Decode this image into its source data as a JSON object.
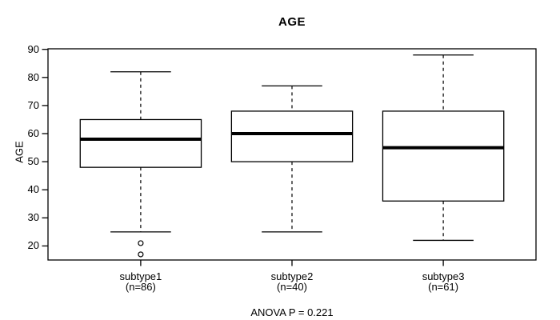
{
  "chart_data": {
    "type": "boxplot",
    "title": "AGE",
    "ylabel": "AGE",
    "xlabel": "",
    "annotation": "ANOVA P = 0.221",
    "yticks": [
      20,
      30,
      40,
      50,
      60,
      70,
      80,
      90
    ],
    "ylim": [
      15.0,
      90.2
    ],
    "grid": false,
    "legend": null,
    "orientation": "vertical",
    "groups": [
      {
        "label": "subtype1",
        "sublabel": "(n=86)",
        "n": 86,
        "whisker_low": 25,
        "q1": 48,
        "median": 58,
        "q3": 65,
        "whisker_high": 82,
        "outliers": [
          21,
          17
        ]
      },
      {
        "label": "subtype2",
        "sublabel": "(n=40)",
        "n": 40,
        "whisker_low": 25,
        "q1": 50,
        "median": 60,
        "q3": 68,
        "whisker_high": 77,
        "outliers": []
      },
      {
        "label": "subtype3",
        "sublabel": "(n=61)",
        "n": 61,
        "whisker_low": 22,
        "q1": 36,
        "median": 55,
        "q3": 68,
        "whisker_high": 88,
        "outliers": []
      }
    ],
    "colors": {
      "foreground": "#000000",
      "background": "#ffffff",
      "box_fill": "#ffffff"
    }
  }
}
